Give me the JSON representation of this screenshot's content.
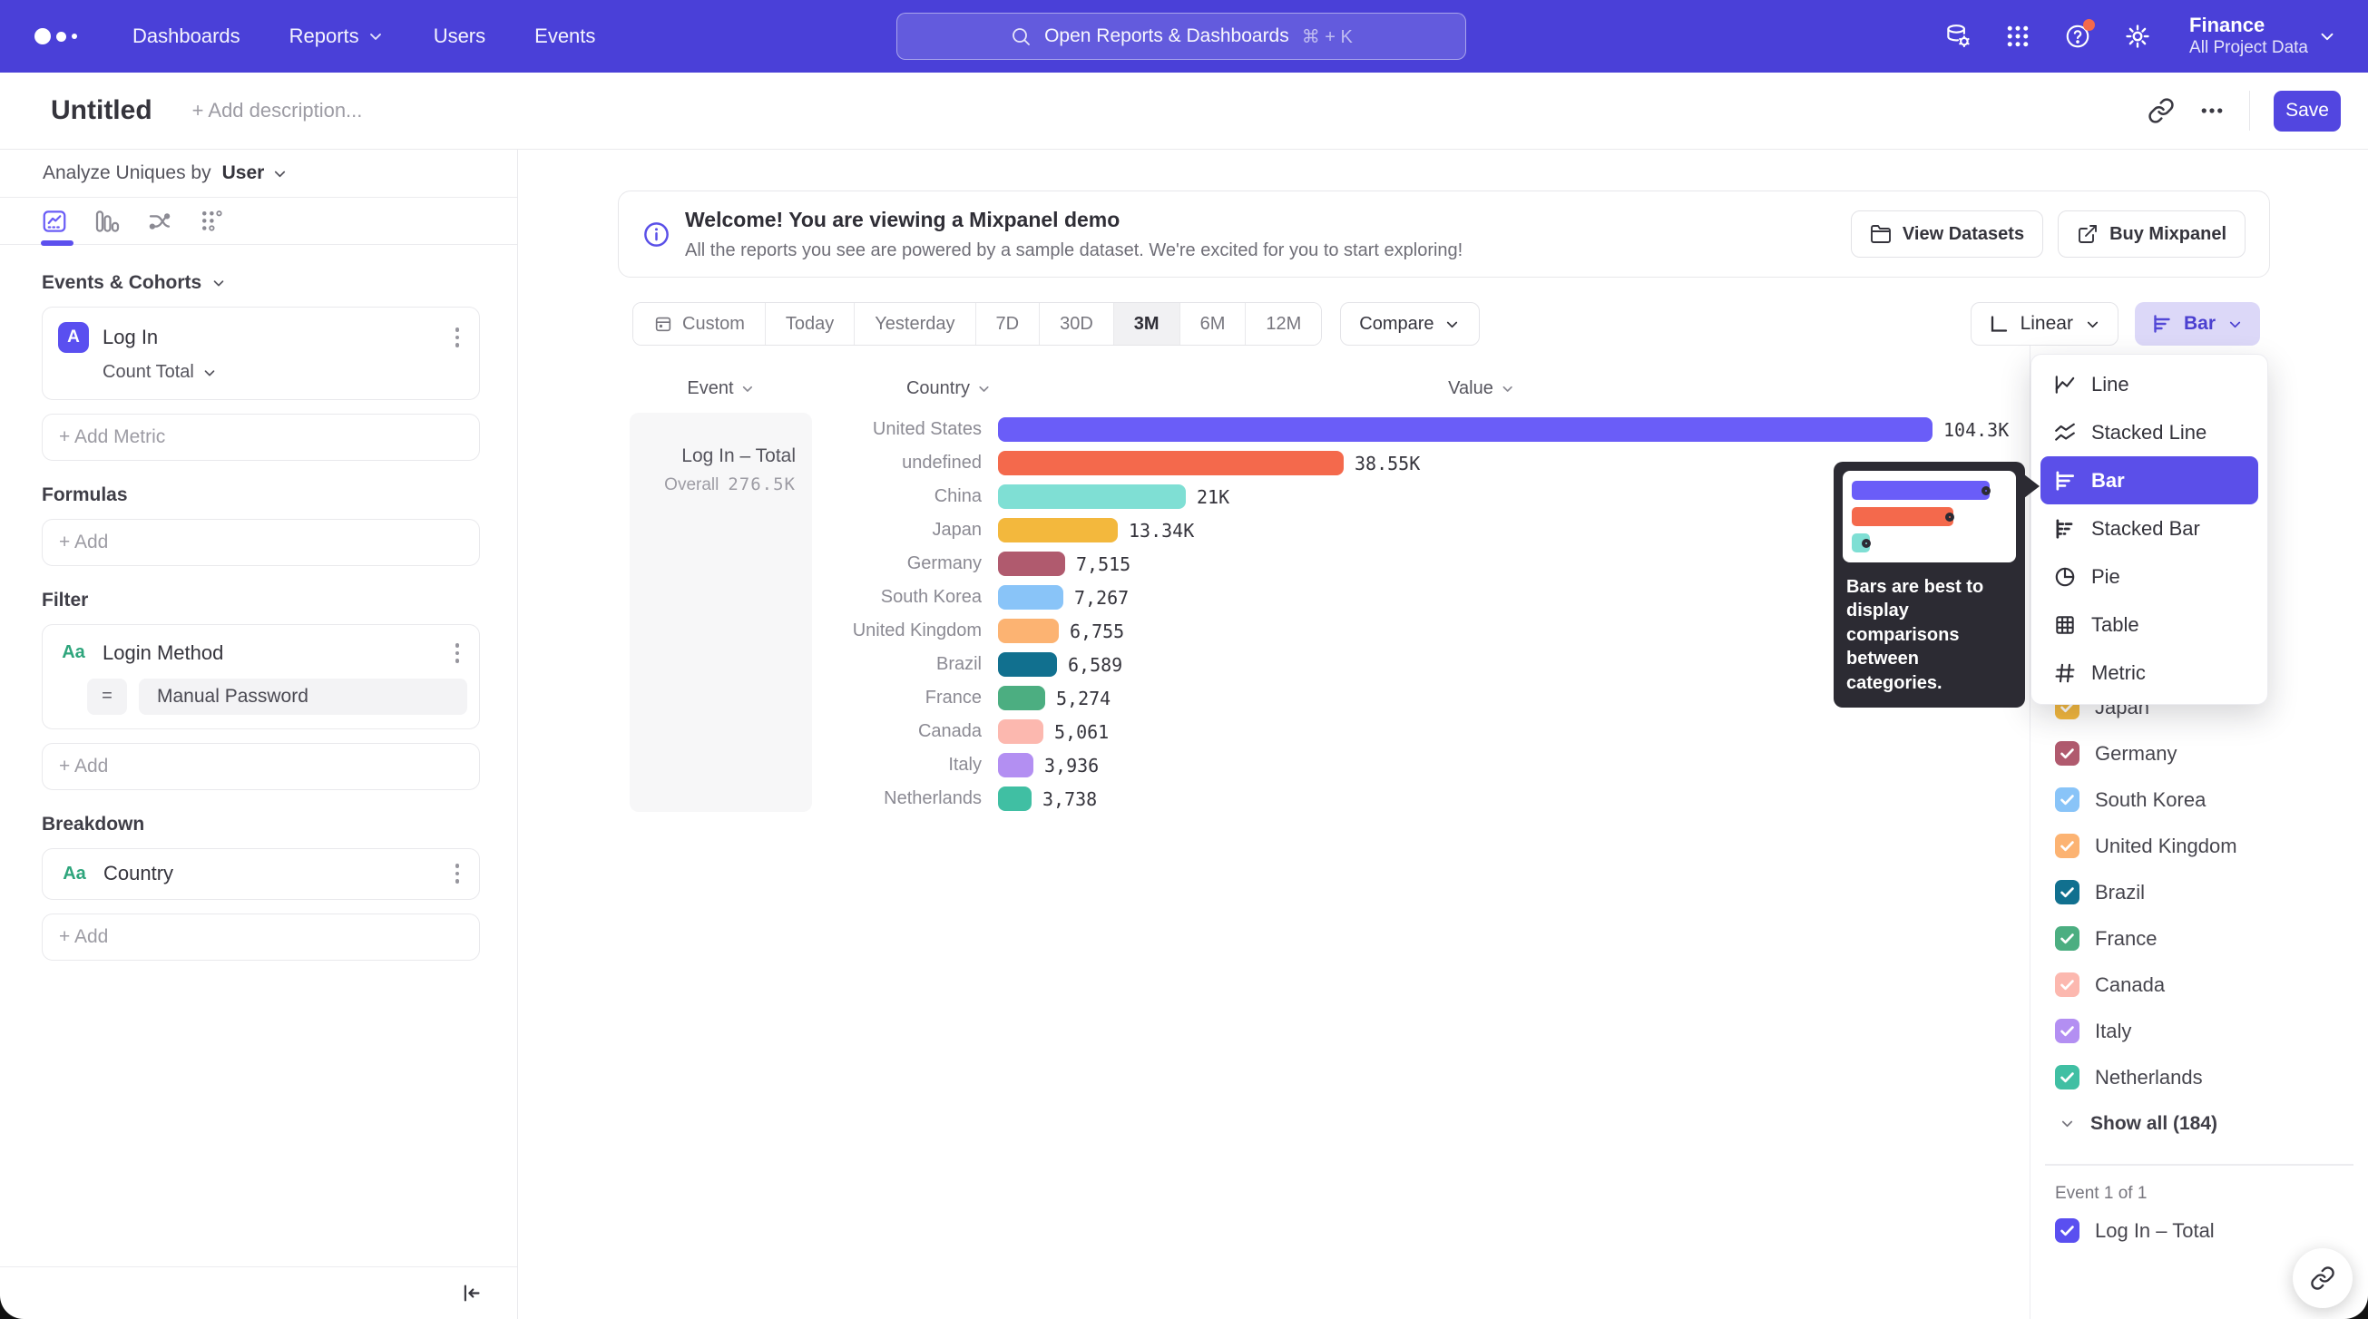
{
  "topnav": {
    "items": [
      {
        "label": "Dashboards",
        "has_menu": false
      },
      {
        "label": "Reports",
        "has_menu": true
      },
      {
        "label": "Users",
        "has_menu": false
      },
      {
        "label": "Events",
        "has_menu": false
      }
    ],
    "search": {
      "placeholder": "Open Reports & Dashboards",
      "shortcut": "⌘ + K"
    },
    "icons": [
      "data-settings-icon",
      "apps-grid-icon",
      "help-icon",
      "gear-icon"
    ],
    "project": {
      "name": "Finance",
      "scope": "All Project Data"
    }
  },
  "titlebar": {
    "title": "Untitled",
    "description_placeholder": "+ Add description...",
    "save_label": "Save"
  },
  "sidebar": {
    "analyze_label": "Analyze Uniques by",
    "analyze_value": "User",
    "tabs": [
      "insights",
      "funnels",
      "flows",
      "retention"
    ],
    "events_header": "Events & Cohorts",
    "metric": {
      "badge": "A",
      "name": "Log In",
      "aggregation": "Count Total"
    },
    "add_metric_label": "+ Add Metric",
    "formulas_header": "Formulas",
    "formulas_add": "+ Add",
    "filter_header": "Filter",
    "filter": {
      "badge": "Aa",
      "name": "Login Method",
      "operator": "=",
      "value": "Manual Password"
    },
    "filter_add": "+ Add",
    "breakdown_header": "Breakdown",
    "breakdown": {
      "badge": "Aa",
      "name": "Country"
    },
    "breakdown_add": "+ Add"
  },
  "banner": {
    "title": "Welcome! You are viewing a Mixpanel demo",
    "subtitle": "All the reports you see are powered by a sample dataset. We're excited for you to start exploring!",
    "view_datasets_label": "View Datasets",
    "buy_label": "Buy Mixpanel"
  },
  "controls": {
    "date_ranges": [
      "Custom",
      "Today",
      "Yesterday",
      "7D",
      "30D",
      "3M",
      "6M",
      "12M"
    ],
    "selected_range": "3M",
    "compare_label": "Compare",
    "scale_label": "Linear",
    "chart_type_label": "Bar"
  },
  "chart_data": {
    "type": "bar",
    "title": "Log In – Total",
    "overall_label": "Overall",
    "overall_value": "276.5K",
    "columns": [
      "Event",
      "Country",
      "Value"
    ],
    "categories": [
      "United States",
      "undefined",
      "China",
      "Japan",
      "Germany",
      "South Korea",
      "United Kingdom",
      "Brazil",
      "France",
      "Canada",
      "Italy",
      "Netherlands"
    ],
    "values": [
      104300,
      38550,
      21000,
      13340,
      7515,
      7267,
      6755,
      6589,
      5274,
      5061,
      3936,
      3738
    ],
    "value_labels": [
      "104.3K",
      "38.55K",
      "21K",
      "13.34K",
      "7,515",
      "7,267",
      "6,755",
      "6,589",
      "5,274",
      "5,061",
      "3,936",
      "3,738"
    ],
    "colors": [
      "#6a5df8",
      "#f4694c",
      "#7fdfd4",
      "#f3b83d",
      "#b05a6e",
      "#89c4f8",
      "#fcb372",
      "#11708f",
      "#4cae81",
      "#fcb8af",
      "#b38ff2",
      "#40bfa3"
    ],
    "patterned_rows": [
      11
    ],
    "xmax": 104300,
    "xlabel": "",
    "ylabel": "",
    "grid": false,
    "legend_position": "right"
  },
  "chart_menu": {
    "items": [
      {
        "label": "Line",
        "icon": "line-icon",
        "selected": false
      },
      {
        "label": "Stacked Line",
        "icon": "stacked-line-icon",
        "selected": false
      },
      {
        "label": "Bar",
        "icon": "bar-icon",
        "selected": true
      },
      {
        "label": "Stacked Bar",
        "icon": "stacked-bar-icon",
        "selected": false
      },
      {
        "label": "Pie",
        "icon": "pie-icon",
        "selected": false
      },
      {
        "label": "Table",
        "icon": "table-icon",
        "selected": false
      },
      {
        "label": "Metric",
        "icon": "metric-icon",
        "selected": false
      }
    ],
    "tooltip": {
      "text": "Bars are best to display comparisons between categories.",
      "bar_colors": [
        "#6a5df8",
        "#f4694c",
        "#7fdfd4"
      ]
    }
  },
  "legend": {
    "items": [
      {
        "label": "Japan",
        "color": "#f3b83d",
        "checked": true,
        "patterned": false
      },
      {
        "label": "Germany",
        "color": "#b05a6e",
        "checked": true,
        "patterned": false
      },
      {
        "label": "South Korea",
        "color": "#89c4f8",
        "checked": true,
        "patterned": false
      },
      {
        "label": "United Kingdom",
        "color": "#fcb372",
        "checked": true,
        "patterned": false
      },
      {
        "label": "Brazil",
        "color": "#11708f",
        "checked": true,
        "patterned": false
      },
      {
        "label": "France",
        "color": "#4cae81",
        "checked": true,
        "patterned": false
      },
      {
        "label": "Canada",
        "color": "#fcb8af",
        "checked": true,
        "patterned": false
      },
      {
        "label": "Italy",
        "color": "#b38ff2",
        "checked": true,
        "patterned": false
      },
      {
        "label": "Netherlands",
        "color": "#40bfa3",
        "checked": true,
        "patterned": true
      }
    ],
    "show_all": "Show all (184)",
    "event_count": "Event 1 of 1",
    "event_item": "Log In – Total",
    "event_color": "#5a4ff0"
  },
  "theme": {
    "nav_bg": "#4a40d8",
    "accent": "#5246e0",
    "menu_selected": "#5b4fe9",
    "bar_button_bg": "#dcd8f8",
    "bar_button_text": "#4b40d0",
    "notification_dot": "#f4694c"
  }
}
